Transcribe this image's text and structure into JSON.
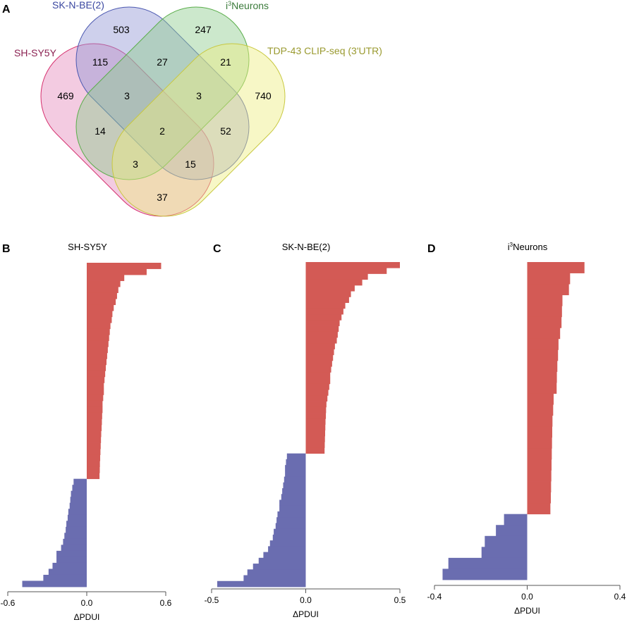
{
  "panels": {
    "a": "A",
    "b": "B",
    "c": "C",
    "d": "D"
  },
  "venn": {
    "sets": [
      {
        "name": "SH-SY5Y",
        "stroke": "#d6306e",
        "fill": "#e58cbc",
        "label_color": "#8b2252"
      },
      {
        "name": "SK-N-BE(2)",
        "stroke": "#4b58b0",
        "fill": "#9296d4",
        "label_color": "#3a47a0"
      },
      {
        "name_prefix": "i",
        "name_sup": "3",
        "name_main": "Neurons",
        "stroke": "#5aad4a",
        "fill": "#8fcc8f",
        "label_color": "#3a7a3a"
      },
      {
        "name": "TDP-43 CLIP-seq (3'UTR)",
        "stroke": "#c8c840",
        "fill": "#eeee80",
        "label_color": "#9a9a30"
      }
    ],
    "regions": [
      {
        "sets": "SK-N-BE(2) only",
        "count": "503"
      },
      {
        "sets": "i3Neurons only",
        "count": "247"
      },
      {
        "sets": "SH-SY5Y & SK-N-BE(2)",
        "count": "115"
      },
      {
        "sets": "SK-N-BE(2) & i3Neurons",
        "count": "27"
      },
      {
        "sets": "i3Neurons & TDP-43",
        "count": "21"
      },
      {
        "sets": "SH-SY5Y only",
        "count": "469"
      },
      {
        "sets": "SH-SY5Y & SK-N-BE(2) & i3Neurons",
        "count": "3"
      },
      {
        "sets": "SK-N-BE(2) & i3Neurons & TDP-43",
        "count": "3"
      },
      {
        "sets": "TDP-43 only",
        "count": "740"
      },
      {
        "sets": "SH-SY5Y & i3Neurons",
        "count": "14"
      },
      {
        "sets": "all four",
        "count": "2"
      },
      {
        "sets": "SK-N-BE(2) & TDP-43",
        "count": "52"
      },
      {
        "sets": "SH-SY5Y & i3Neurons & TDP-43",
        "count": "3"
      },
      {
        "sets": "SH-SY5Y & SK-N-BE(2) & TDP-43",
        "count": "15"
      },
      {
        "sets": "SH-SY5Y & TDP-43",
        "count": "37"
      }
    ]
  },
  "colors": {
    "positive": "#d35a55",
    "negative": "#6a6db0"
  },
  "chart_data": [
    {
      "type": "bar",
      "orientation": "horizontal",
      "title": "SH-SY5Y",
      "xlabel": "ΔPDUI",
      "xlim": [
        -0.6,
        0.6
      ],
      "ticks": [
        "-0.6",
        "0.0",
        "0.6"
      ],
      "tick_values": [
        -0.6,
        0,
        0.6
      ],
      "values": [
        0.565,
        0.455,
        0.285,
        0.255,
        0.24,
        0.23,
        0.22,
        0.205,
        0.195,
        0.19,
        0.18,
        0.175,
        0.17,
        0.165,
        0.16,
        0.155,
        0.15,
        0.145,
        0.14,
        0.135,
        0.13,
        0.13,
        0.125,
        0.12,
        0.12,
        0.117,
        0.115,
        0.113,
        0.11,
        0.108,
        0.106,
        0.104,
        0.102,
        0.1,
        0.099,
        0.097,
        -0.1,
        -0.11,
        -0.12,
        -0.125,
        -0.13,
        -0.14,
        -0.145,
        -0.155,
        -0.16,
        -0.17,
        -0.18,
        -0.195,
        -0.23,
        -0.23,
        -0.26,
        -0.29,
        -0.33,
        -0.49
      ]
    },
    {
      "type": "bar",
      "orientation": "horizontal",
      "title": "SK-N-BE(2)",
      "xlabel": "ΔPDUI",
      "xlim": [
        -0.5,
        0.5
      ],
      "ticks": [
        "-0.5",
        "0.0",
        "0.5"
      ],
      "tick_values": [
        -0.5,
        0,
        0.5
      ],
      "values": [
        0.5,
        0.43,
        0.33,
        0.3,
        0.26,
        0.24,
        0.23,
        0.21,
        0.2,
        0.19,
        0.18,
        0.175,
        0.17,
        0.165,
        0.155,
        0.15,
        0.145,
        0.14,
        0.135,
        0.13,
        0.13,
        0.125,
        0.12,
        0.115,
        0.11,
        0.108,
        0.107,
        0.105,
        0.104,
        0.103,
        0.102,
        0.101,
        0.1,
        -0.1,
        -0.105,
        -0.11,
        -0.11,
        -0.115,
        -0.12,
        -0.125,
        -0.13,
        -0.14,
        -0.14,
        -0.15,
        -0.155,
        -0.16,
        -0.17,
        -0.175,
        -0.19,
        -0.2,
        -0.225,
        -0.25,
        -0.28,
        -0.31,
        -0.33,
        -0.47
      ]
    },
    {
      "type": "bar",
      "orientation": "horizontal",
      "title_prefix": "i",
      "title_sup": "3",
      "title_main": "Neurons",
      "xlabel": "ΔPDUI",
      "xlim": [
        -0.4,
        0.4
      ],
      "ticks": [
        "-0.4",
        "0.0",
        "0.4"
      ],
      "tick_values": [
        -0.4,
        0,
        0.4
      ],
      "values": [
        0.247,
        0.185,
        0.18,
        0.152,
        0.15,
        0.148,
        0.142,
        0.135,
        0.133,
        0.13,
        0.128,
        0.127,
        0.114,
        0.112,
        0.109,
        0.108,
        0.107,
        0.106,
        0.105,
        0.104,
        0.103,
        0.102,
        0.1,
        -0.1,
        -0.135,
        -0.183,
        -0.197,
        -0.34,
        -0.365
      ]
    }
  ]
}
